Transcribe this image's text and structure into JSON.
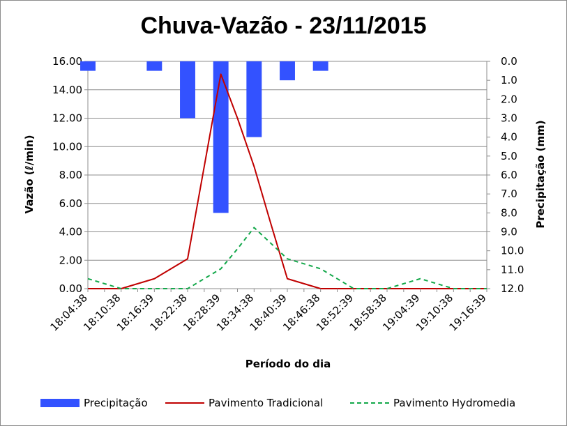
{
  "chart_data": {
    "type": "bar+line",
    "title": "Chuva-Vazão - 23/11/2015",
    "xlabel": "Período do dia",
    "ylabel_left": "Vazão (ℓ/min)",
    "ylabel_right": "Precipitação (mm)",
    "ylim_left": [
      0,
      16
    ],
    "ylim_right": [
      0,
      12
    ],
    "right_axis_inverted": true,
    "x_tick_labels": [
      "18:04:38",
      "18:10:38",
      "18:16:39",
      "18:22:38",
      "18:28:39",
      "18:34:38",
      "18:40:39",
      "18:46:38",
      "18:52:39",
      "18:58:38",
      "19:04:39",
      "19:10:38",
      "19:16:39"
    ],
    "y_left_ticks": [
      "0.00",
      "2.00",
      "4.00",
      "6.00",
      "8.00",
      "10.00",
      "12.00",
      "14.00",
      "16.00"
    ],
    "y_right_ticks": [
      "0.0",
      "1.0",
      "2.0",
      "3.0",
      "4.0",
      "5.0",
      "6.0",
      "7.0",
      "8.0",
      "9.0",
      "10.0",
      "11.0",
      "12.0"
    ],
    "x_points": [
      "18:04:38",
      "18:07:38",
      "18:10:38",
      "18:13:38",
      "18:16:39",
      "18:19:39",
      "18:22:38",
      "18:25:38",
      "18:28:39",
      "18:31:39",
      "18:34:38",
      "18:37:38",
      "18:40:39",
      "18:43:39",
      "18:46:38",
      "18:49:38",
      "18:52:39",
      "18:55:39",
      "18:58:38",
      "19:01:38",
      "19:04:39",
      "19:07:39",
      "19:10:38",
      "19:13:38",
      "19:16:39"
    ],
    "series": [
      {
        "name": "Precipitação",
        "kind": "bar",
        "axis": "right",
        "color": "#3352ff",
        "bars": [
          {
            "x": "18:04:38",
            "value": 0.5
          },
          {
            "x": "18:16:39",
            "value": 0.5
          },
          {
            "x": "18:22:38",
            "value": 3.0
          },
          {
            "x": "18:28:39",
            "value": 8.0
          },
          {
            "x": "18:34:38",
            "value": 4.0
          },
          {
            "x": "18:40:39",
            "value": 1.0
          },
          {
            "x": "18:46:38",
            "value": 0.5
          }
        ]
      },
      {
        "name": "Pavimento Tradicional",
        "kind": "line",
        "axis": "left",
        "color": "#c00000",
        "style": "solid",
        "values": [
          0,
          0,
          0,
          0.35,
          0.7,
          1.4,
          2.1,
          8.6,
          15.1,
          12.0,
          8.6,
          4.6,
          0.7,
          0.35,
          0,
          0,
          0,
          0,
          0,
          0,
          0,
          0,
          0,
          0,
          0
        ]
      },
      {
        "name": "Pavimento Hydromedia",
        "kind": "line",
        "axis": "left",
        "color": "#13a84a",
        "style": "dashed",
        "values": [
          0.7,
          0.35,
          0,
          0,
          0,
          0,
          0,
          0.7,
          1.4,
          2.8,
          4.3,
          3.2,
          2.1,
          1.75,
          1.4,
          0.7,
          0,
          0,
          0,
          0.35,
          0.7,
          0.35,
          0,
          0,
          0
        ]
      }
    ],
    "grid": "horizontal",
    "legend_position": "bottom"
  }
}
